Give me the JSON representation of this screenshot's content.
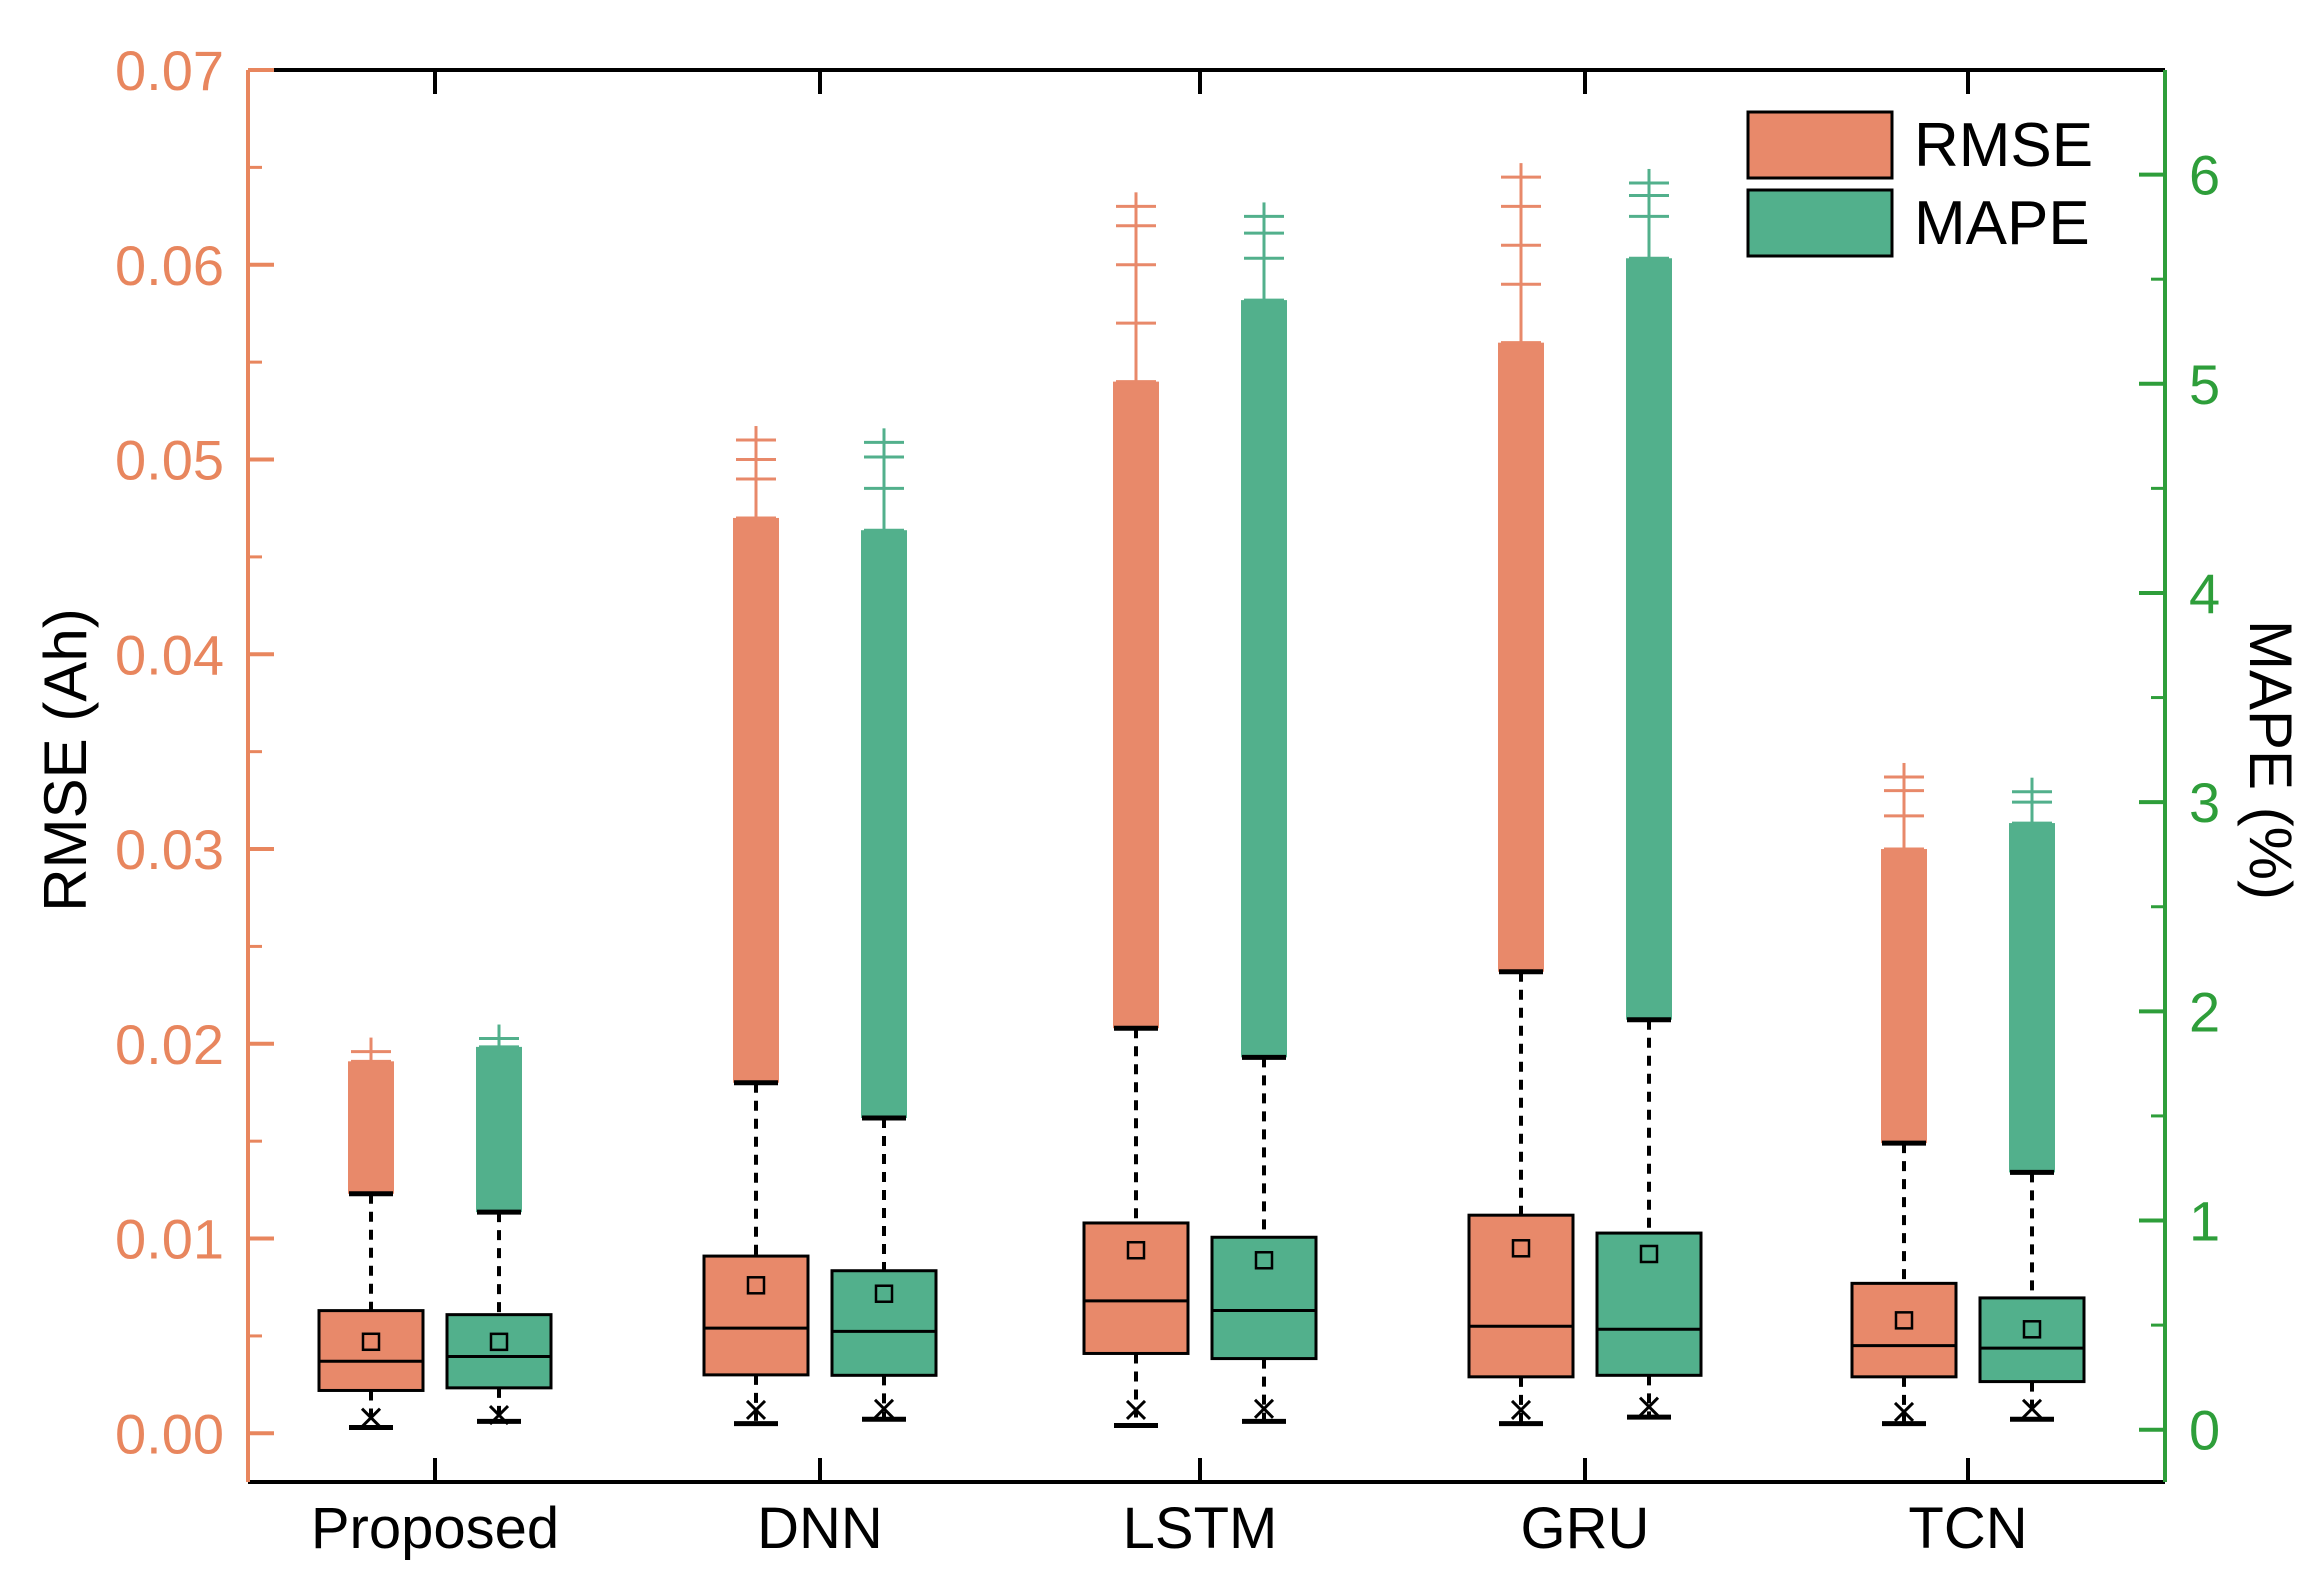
{
  "chart_data": {
    "type": "boxplot",
    "title": "",
    "xlabel": "",
    "categories": [
      "Proposed",
      "DNN",
      "LSTM",
      "GRU",
      "TCN"
    ],
    "left_axis": {
      "label": "RMSE (Ah)",
      "range": [
        -0.0025,
        0.07
      ],
      "ticks": [
        0.0,
        0.01,
        0.02,
        0.03,
        0.04,
        0.05,
        0.06,
        0.07
      ],
      "tick_labels": [
        "0.00",
        "0.01",
        "0.02",
        "0.03",
        "0.04",
        "0.05",
        "0.06",
        "0.07"
      ],
      "color": "#E8865E"
    },
    "right_axis": {
      "label": "MAPE (%)",
      "range": [
        -0.25,
        6.5
      ],
      "ticks": [
        0,
        1,
        2,
        3,
        4,
        5,
        6
      ],
      "tick_labels": [
        "0",
        "1",
        "2",
        "3",
        "4",
        "5",
        "6"
      ],
      "color": "#2E9E3A"
    },
    "colors": {
      "RMSE": "#E8896A",
      "MAPE": "#52B08C",
      "whisker": "#000000"
    },
    "series": [
      {
        "name": "RMSE",
        "axis": "left",
        "boxes": [
          {
            "category": "Proposed",
            "min": 0.0003,
            "q1": 0.0022,
            "median": 0.0037,
            "q3": 0.0063,
            "mean": 0.0047,
            "whisker_high": 0.0123,
            "outliers_top": [
              0.0191,
              0.0196
            ],
            "x_marker": 0.0008
          },
          {
            "category": "DNN",
            "min": 0.0005,
            "q1": 0.003,
            "median": 0.0054,
            "q3": 0.0091,
            "mean": 0.0076,
            "whisker_high": 0.018,
            "outliers_top": [
              0.047,
              0.049,
              0.05,
              0.051
            ],
            "x_marker": 0.0012
          },
          {
            "category": "LSTM",
            "min": 0.0004,
            "q1": 0.0041,
            "median": 0.0068,
            "q3": 0.0108,
            "mean": 0.0094,
            "whisker_high": 0.0208,
            "outliers_top": [
              0.054,
              0.057,
              0.06,
              0.062,
              0.063
            ],
            "x_marker": 0.0012
          },
          {
            "category": "GRU",
            "min": 0.0005,
            "q1": 0.0029,
            "median": 0.0055,
            "q3": 0.0112,
            "mean": 0.0095,
            "whisker_high": 0.0237,
            "outliers_top": [
              0.056,
              0.059,
              0.061,
              0.063,
              0.0645
            ],
            "x_marker": 0.0012
          },
          {
            "category": "TCN",
            "min": 0.0005,
            "q1": 0.0029,
            "median": 0.0045,
            "q3": 0.0077,
            "mean": 0.0058,
            "whisker_high": 0.0149,
            "outliers_top": [
              0.03,
              0.0317,
              0.033,
              0.0337
            ],
            "x_marker": 0.0011
          }
        ]
      },
      {
        "name": "MAPE",
        "axis": "right",
        "boxes": [
          {
            "category": "Proposed",
            "min": 0.04,
            "q1": 0.2,
            "median": 0.35,
            "q3": 0.55,
            "mean": 0.42,
            "whisker_high": 1.04,
            "outliers_top": [
              1.83,
              1.87
            ],
            "x_marker": 0.07
          },
          {
            "category": "DNN",
            "min": 0.05,
            "q1": 0.26,
            "median": 0.47,
            "q3": 0.76,
            "mean": 0.65,
            "whisker_high": 1.49,
            "outliers_top": [
              4.3,
              4.5,
              4.65,
              4.72
            ],
            "x_marker": 0.1
          },
          {
            "category": "LSTM",
            "min": 0.04,
            "q1": 0.34,
            "median": 0.57,
            "q3": 0.92,
            "mean": 0.81,
            "whisker_high": 1.78,
            "outliers_top": [
              5.4,
              5.6,
              5.72,
              5.8
            ],
            "x_marker": 0.1
          },
          {
            "category": "GRU",
            "min": 0.06,
            "q1": 0.26,
            "median": 0.48,
            "q3": 0.94,
            "mean": 0.84,
            "whisker_high": 1.96,
            "outliers_top": [
              5.6,
              5.8,
              5.9,
              5.96
            ],
            "x_marker": 0.11
          },
          {
            "category": "TCN",
            "min": 0.05,
            "q1": 0.23,
            "median": 0.39,
            "q3": 0.63,
            "mean": 0.48,
            "whisker_high": 1.23,
            "outliers_top": [
              2.9,
              3.0,
              3.05
            ],
            "x_marker": 0.1
          }
        ]
      }
    ],
    "legend": {
      "position": "top-right",
      "entries": [
        "RMSE",
        "MAPE"
      ]
    },
    "grid": false
  }
}
